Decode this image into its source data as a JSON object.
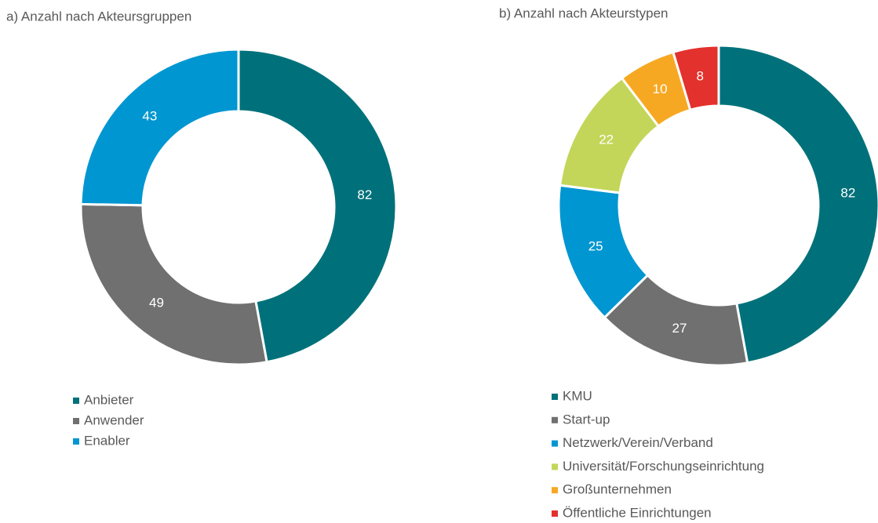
{
  "chart_data": [
    {
      "type": "donut",
      "title": "a) Anzahl nach Akteursgruppen",
      "categories": [
        "Anbieter",
        "Anwender",
        "Enabler"
      ],
      "values": [
        82,
        49,
        43
      ],
      "colors": [
        "#00717a",
        "#707070",
        "#0096d1"
      ]
    },
    {
      "type": "donut",
      "title": "b) Anzahl nach Akteurstypen",
      "categories": [
        "KMU",
        "Start-up",
        "Netzwerk/Verein/Verband",
        "Universität/Forschungseinrichtung",
        "Großunternehmen",
        "Öffentliche Einrichtungen"
      ],
      "values": [
        82,
        27,
        25,
        22,
        10,
        8
      ],
      "colors": [
        "#00717a",
        "#707070",
        "#0096d1",
        "#c3d65a",
        "#f7a823",
        "#e3312d"
      ]
    }
  ]
}
